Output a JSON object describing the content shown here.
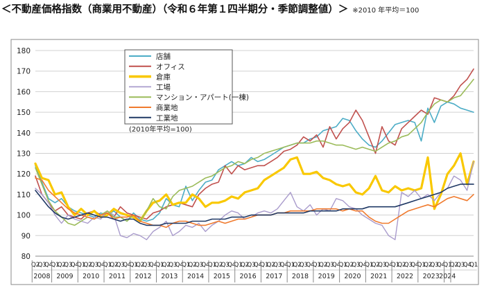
{
  "header": {
    "title": "＜不動産価格指数（商業用不動産）（令和６年第１四半期分・季節調整値）＞",
    "note": "※2010 年平均＝100"
  },
  "chart_data": {
    "type": "line",
    "title": "",
    "xlabel": "",
    "ylabel": "",
    "ylim": [
      80,
      180
    ],
    "yticks": [
      80,
      90,
      100,
      110,
      120,
      130,
      140,
      150,
      160,
      170,
      180
    ],
    "grid": true,
    "legend_position": "top-left",
    "legend_note": "(2010年平均=100)",
    "quarter_labels": [
      "Q2",
      "Q3",
      "Q4",
      "Q1",
      "Q2",
      "Q3",
      "Q4",
      "Q1",
      "Q2",
      "Q3",
      "Q4",
      "Q1",
      "Q2",
      "Q3",
      "Q4",
      "Q1",
      "Q2",
      "Q3",
      "Q4",
      "Q1",
      "Q2",
      "Q3",
      "Q4",
      "Q1",
      "Q2",
      "Q3",
      "Q4",
      "Q1",
      "Q2",
      "Q3",
      "Q4",
      "Q1",
      "Q2",
      "Q3",
      "Q4",
      "Q1",
      "Q2",
      "Q3",
      "Q4",
      "Q1",
      "Q2",
      "Q3",
      "Q4",
      "Q1",
      "Q2",
      "Q3",
      "Q4",
      "Q1",
      "Q2",
      "Q3",
      "Q4",
      "Q1",
      "Q2",
      "Q3",
      "Q4",
      "Q1",
      "Q2",
      "Q3",
      "Q4",
      "Q1",
      "Q2",
      "Q3",
      "Q4",
      "Q1",
      "Q2",
      "Q3",
      "Q4",
      "Q1"
    ],
    "year_groups": [
      {
        "label": "2008",
        "count": 3
      },
      {
        "label": "2009",
        "count": 4
      },
      {
        "label": "2010",
        "count": 4
      },
      {
        "label": "2011",
        "count": 4
      },
      {
        "label": "2012",
        "count": 4
      },
      {
        "label": "2013",
        "count": 4
      },
      {
        "label": "2014",
        "count": 4
      },
      {
        "label": "2015",
        "count": 4
      },
      {
        "label": "2016",
        "count": 4
      },
      {
        "label": "2017",
        "count": 4
      },
      {
        "label": "2018",
        "count": 4
      },
      {
        "label": "2019",
        "count": 4
      },
      {
        "label": "2020",
        "count": 4
      },
      {
        "label": "2021",
        "count": 4
      },
      {
        "label": "2022",
        "count": 4
      },
      {
        "label": "2023",
        "count": 4
      },
      {
        "label": "2024",
        "count": 1
      }
    ],
    "series": [
      {
        "name": "店舗",
        "color": "#4bacc6",
        "width": 1.6,
        "values": [
          124,
          116,
          108,
          106,
          108,
          104,
          102,
          101,
          100,
          99,
          101,
          100,
          102,
          99,
          97,
          101,
          98,
          97,
          98,
          101,
          108,
          105,
          104,
          114,
          107,
          112,
          116,
          117,
          122,
          124,
          126,
          124,
          125,
          128,
          126,
          127,
          129,
          131,
          133,
          134,
          135,
          135,
          137,
          138,
          141,
          142,
          143,
          147,
          146,
          141,
          137,
          134,
          133,
          136,
          140,
          144,
          145,
          146,
          145,
          136,
          152,
          145,
          153,
          155,
          154,
          152,
          151,
          150
        ]
      },
      {
        "name": "オフィス",
        "color": "#c0504d",
        "width": 1.6,
        "values": [
          119,
          110,
          106,
          102,
          104,
          100,
          99,
          98,
          101,
          102,
          100,
          101,
          99,
          104,
          101,
          100,
          99,
          98,
          101,
          102,
          104,
          105,
          106,
          105,
          104,
          110,
          113,
          115,
          116,
          124,
          120,
          124,
          122,
          123,
          124,
          124,
          126,
          128,
          131,
          132,
          134,
          138,
          136,
          139,
          133,
          143,
          137,
          142,
          145,
          151,
          146,
          138,
          130,
          143,
          136,
          134,
          142,
          145,
          148,
          151,
          149,
          157,
          156,
          155,
          158,
          163,
          166,
          171
        ]
      },
      {
        "name": "倉庫",
        "color": "#f9c800",
        "width": 3.2,
        "values": [
          125,
          118,
          117,
          110,
          111,
          104,
          100,
          103,
          100,
          102,
          99,
          100,
          103,
          101,
          100,
          99,
          97,
          102,
          106,
          107,
          110,
          105,
          106,
          106,
          110,
          108,
          104,
          106,
          106,
          107,
          109,
          108,
          111,
          112,
          113,
          117,
          119,
          121,
          123,
          127,
          128,
          120,
          120,
          121,
          118,
          117,
          115,
          114,
          115,
          111,
          110,
          113,
          119,
          112,
          111,
          114,
          112,
          113,
          112,
          113,
          128,
          103,
          110,
          120,
          124,
          130,
          115,
          126
        ]
      },
      {
        "name": "工場",
        "color": "#a99bcc",
        "width": 1.4,
        "values": [
          113,
          110,
          106,
          100,
          96,
          100,
          98,
          97,
          96,
          99,
          98,
          102,
          100,
          90,
          89,
          91,
          90,
          88,
          92,
          94,
          97,
          90,
          92,
          95,
          94,
          96,
          92,
          95,
          97,
          100,
          102,
          101,
          98,
          99,
          101,
          102,
          101,
          103,
          107,
          111,
          104,
          102,
          105,
          100,
          103,
          102,
          108,
          107,
          104,
          103,
          100,
          98,
          96,
          95,
          90,
          88,
          111,
          109,
          112,
          108,
          110,
          107,
          111,
          113,
          119,
          117,
          112,
          126
        ]
      },
      {
        "name": "マンション・アパート(一棟)",
        "color": "#9bbb59",
        "width": 1.6,
        "values": [
          123,
          115,
          107,
          102,
          99,
          96,
          95,
          97,
          99,
          98,
          100,
          102,
          99,
          99,
          97,
          100,
          97,
          102,
          108,
          104,
          103,
          109,
          112,
          113,
          114,
          116,
          118,
          119,
          121,
          123,
          124,
          126,
          125,
          127,
          128,
          130,
          131,
          132,
          133,
          134,
          135,
          135,
          135,
          136,
          136,
          135,
          134,
          134,
          133,
          132,
          133,
          132,
          131,
          133,
          135,
          136,
          138,
          139,
          142,
          145,
          150,
          154,
          156,
          155,
          157,
          158,
          162,
          166
        ]
      },
      {
        "name": "商業地",
        "color": "#f07a2d",
        "width": 1.6,
        "values": [
          118,
          117,
          112,
          109,
          106,
          103,
          101,
          100,
          99,
          98,
          100,
          101,
          98,
          99,
          99,
          100,
          97,
          96,
          95,
          95,
          94,
          96,
          97,
          97,
          96,
          95,
          95,
          96,
          97,
          96,
          97,
          98,
          98,
          99,
          100,
          100,
          100,
          101,
          101,
          102,
          102,
          102,
          102,
          103,
          103,
          103,
          103,
          102,
          103,
          102,
          102,
          99,
          97,
          96,
          96,
          98,
          100,
          102,
          103,
          104,
          105,
          104,
          106,
          108,
          109,
          108,
          107,
          110
        ]
      },
      {
        "name": "工業地",
        "color": "#1f3864",
        "width": 1.6,
        "values": [
          112,
          108,
          104,
          101,
          99,
          98,
          99,
          100,
          101,
          100,
          99,
          99,
          98,
          97,
          98,
          98,
          96,
          95,
          95,
          95,
          96,
          96,
          96,
          96,
          97,
          97,
          97,
          98,
          98,
          98,
          99,
          99,
          99,
          100,
          100,
          100,
          100,
          101,
          101,
          101,
          101,
          101,
          102,
          102,
          102,
          102,
          102,
          103,
          103,
          103,
          103,
          104,
          104,
          104,
          104,
          104,
          105,
          106,
          107,
          108,
          109,
          110,
          111,
          113,
          114,
          115,
          115,
          115
        ]
      }
    ]
  }
}
